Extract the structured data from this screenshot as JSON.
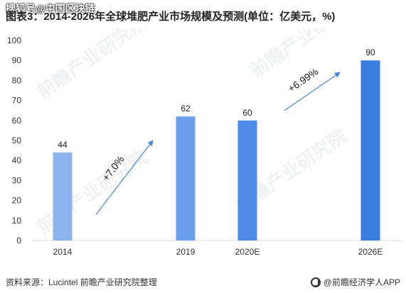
{
  "header": {
    "watermark": "搜狐号@中国区块链",
    "title": "图表3：2014-2026年全球堆肥产业市场规模及预测(单位：亿美元，%)"
  },
  "chart_data": {
    "type": "bar",
    "categories": [
      "2014",
      "2019",
      "2020E",
      "2026E"
    ],
    "values": [
      44,
      62,
      60,
      90
    ],
    "bar_colors": [
      "#8db3ee",
      "#6aa0ec",
      "#4d8be6",
      "#3a7de0"
    ],
    "ylim": [
      0,
      100
    ],
    "yticks": [
      0,
      10,
      20,
      30,
      40,
      50,
      60,
      70,
      80,
      90,
      100
    ],
    "grid": false,
    "annotations": [
      {
        "text": "+7.0%",
        "from": [
          "2014",
          13
        ],
        "to": [
          "2019",
          50
        ]
      },
      {
        "text": "+6.99%",
        "from": [
          "2020E",
          65
        ],
        "to": [
          "2026E",
          84
        ]
      }
    ]
  },
  "footer": {
    "source": "资料来源：Lucintel 前瞻产业研究院整理",
    "brand": "@前瞻经济学人APP"
  }
}
